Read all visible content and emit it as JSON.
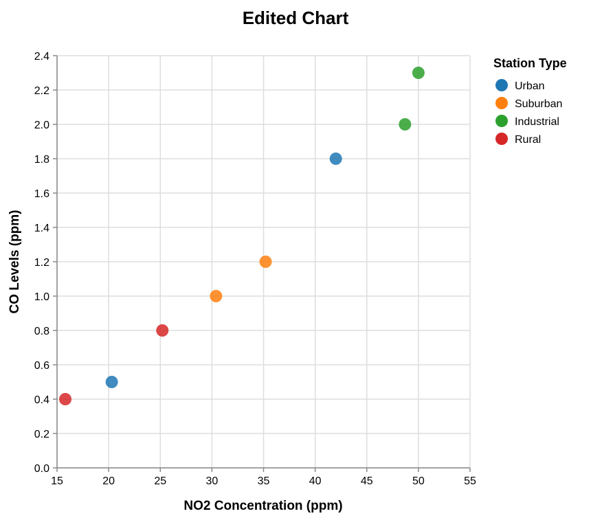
{
  "chart_data": {
    "type": "scatter",
    "title": "Edited Chart",
    "xlabel": "NO2 Concentration (ppm)",
    "ylabel": "CO Levels (ppm)",
    "xlim": [
      15,
      55
    ],
    "ylim": [
      0,
      2.4
    ],
    "x_ticks": [
      "15",
      "20",
      "25",
      "30",
      "35",
      "40",
      "45",
      "50",
      "55"
    ],
    "y_ticks": [
      "0.0",
      "0.2",
      "0.4",
      "0.6",
      "0.8",
      "1.0",
      "1.2",
      "1.4",
      "1.6",
      "1.8",
      "2.0",
      "2.2",
      "2.4"
    ],
    "grid": true,
    "legend": {
      "title": "Station Type",
      "position": "top-right"
    },
    "series": [
      {
        "name": "Urban",
        "color": "#1f77b4",
        "points": [
          {
            "x": 20.3,
            "y": 0.5
          },
          {
            "x": 42.0,
            "y": 1.8
          }
        ]
      },
      {
        "name": "Suburban",
        "color": "#ff7f0e",
        "points": [
          {
            "x": 30.4,
            "y": 1.0
          },
          {
            "x": 35.2,
            "y": 1.2
          }
        ]
      },
      {
        "name": "Industrial",
        "color": "#2ca02c",
        "points": [
          {
            "x": 48.7,
            "y": 2.0
          },
          {
            "x": 50.0,
            "y": 2.3
          }
        ]
      },
      {
        "name": "Rural",
        "color": "#d62728",
        "points": [
          {
            "x": 15.8,
            "y": 0.4
          },
          {
            "x": 25.2,
            "y": 0.8
          }
        ]
      }
    ]
  }
}
